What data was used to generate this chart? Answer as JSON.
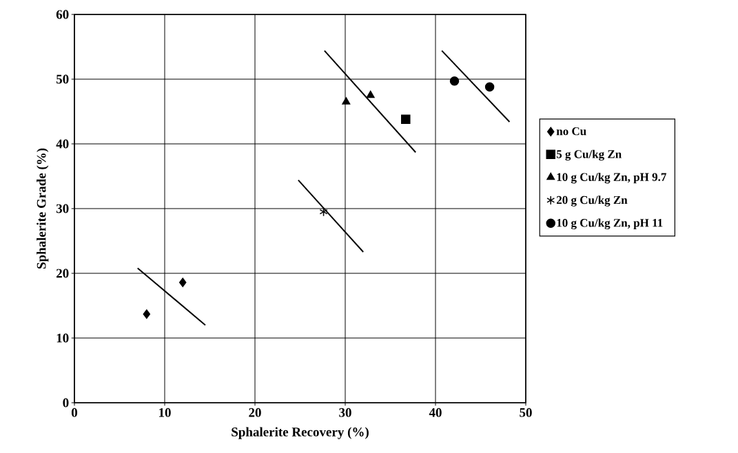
{
  "chart_data": {
    "type": "scatter",
    "xlabel": "Sphalerite Recovery (%)",
    "ylabel": "Sphalerite Grade (%)",
    "xlim": [
      0,
      50
    ],
    "ylim": [
      0,
      60
    ],
    "xticks": [
      0,
      10,
      20,
      30,
      40,
      50
    ],
    "yticks": [
      0,
      10,
      20,
      30,
      40,
      50,
      60
    ],
    "grid": true,
    "legend": "right",
    "series": [
      {
        "name": "no Cu",
        "color": "#000000",
        "marker": "diamond",
        "x": [
          8.0,
          12.0
        ],
        "values": [
          13.7,
          18.6
        ]
      },
      {
        "name": "5 g Cu/kg Zn",
        "color": "#000000",
        "marker": "square",
        "x": [
          36.7
        ],
        "values": [
          43.8
        ]
      },
      {
        "name": "10 g Cu/kg Zn, pH 9.7",
        "color": "#000000",
        "marker": "triangle",
        "x": [
          30.1,
          32.8
        ],
        "values": [
          46.5,
          47.5
        ]
      },
      {
        "name": "20 g Cu/kg Zn",
        "color": "#000000",
        "marker": "cross",
        "x": [
          27.6
        ],
        "values": [
          29.5
        ]
      },
      {
        "name": "10 g Cu/kg Zn, pH 11",
        "color": "#000000",
        "marker": "circle",
        "x": [
          42.1,
          46.0
        ],
        "values": [
          49.7,
          48.8
        ]
      },
      {
        "type": "line",
        "color": "#000000",
        "marker": "none",
        "x": [
          7.0,
          14.5
        ],
        "values": [
          20.8,
          12.0
        ]
      },
      {
        "type": "line",
        "color": "#000000",
        "marker": "none",
        "x": [
          24.8,
          32.0
        ],
        "values": [
          34.4,
          23.3
        ]
      },
      {
        "type": "line",
        "color": "#000000",
        "marker": "none",
        "x": [
          27.7,
          37.8
        ],
        "values": [
          54.4,
          38.7
        ]
      },
      {
        "type": "line",
        "color": "#000000",
        "marker": "none",
        "x": [
          40.7,
          48.2
        ],
        "values": [
          54.4,
          43.4
        ]
      }
    ]
  }
}
